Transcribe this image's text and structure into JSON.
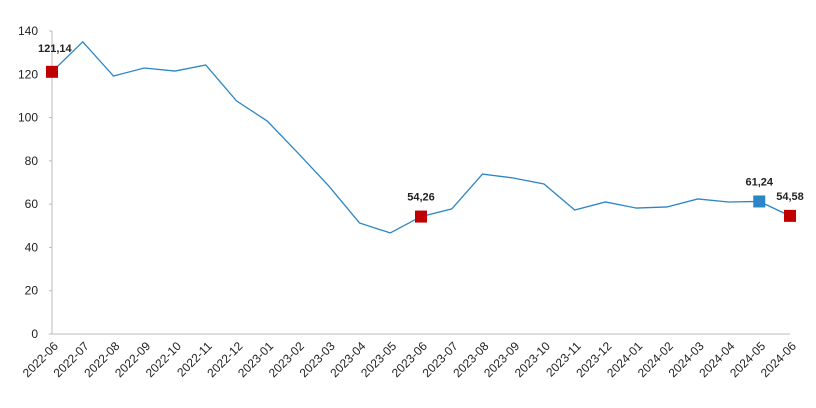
{
  "chart_data": {
    "type": "line",
    "categories": [
      "2022-06",
      "2022-07",
      "2022-08",
      "2022-09",
      "2022-10",
      "2022-11",
      "2022-12",
      "2023-01",
      "2023-02",
      "2023-03",
      "2023-04",
      "2023-05",
      "2023-06",
      "2023-07",
      "2023-08",
      "2023-09",
      "2023-10",
      "2023-11",
      "2023-12",
      "2024-01",
      "2024-02",
      "2024-03",
      "2024-04",
      "2024-05",
      "2024-06"
    ],
    "series": [
      {
        "color": "#2a86c6",
        "values": [
          121.14,
          135,
          119.2,
          122.9,
          121.5,
          124.3,
          107.7,
          98.4,
          83.6,
          68.4,
          51.3,
          46.7,
          54.26,
          57.8,
          73.9,
          72.1,
          69.3,
          57.3,
          61.0,
          58.2,
          58.7,
          62.4,
          61.0,
          61.24,
          54.58
        ],
        "value_labels": [
          "121,14",
          null,
          null,
          null,
          null,
          null,
          null,
          null,
          null,
          null,
          null,
          null,
          "54,26",
          null,
          null,
          null,
          null,
          null,
          null,
          null,
          null,
          null,
          null,
          "61,24",
          "54,58"
        ],
        "marker_colors": [
          "#c00000",
          null,
          null,
          null,
          null,
          null,
          null,
          null,
          null,
          null,
          null,
          null,
          "#c00000",
          null,
          null,
          null,
          null,
          null,
          null,
          null,
          null,
          null,
          null,
          "#2a86c6",
          "#c00000"
        ]
      }
    ],
    "ylim": [
      0,
      140
    ],
    "yticks": [
      0,
      20,
      40,
      60,
      80,
      100,
      120,
      140
    ]
  }
}
